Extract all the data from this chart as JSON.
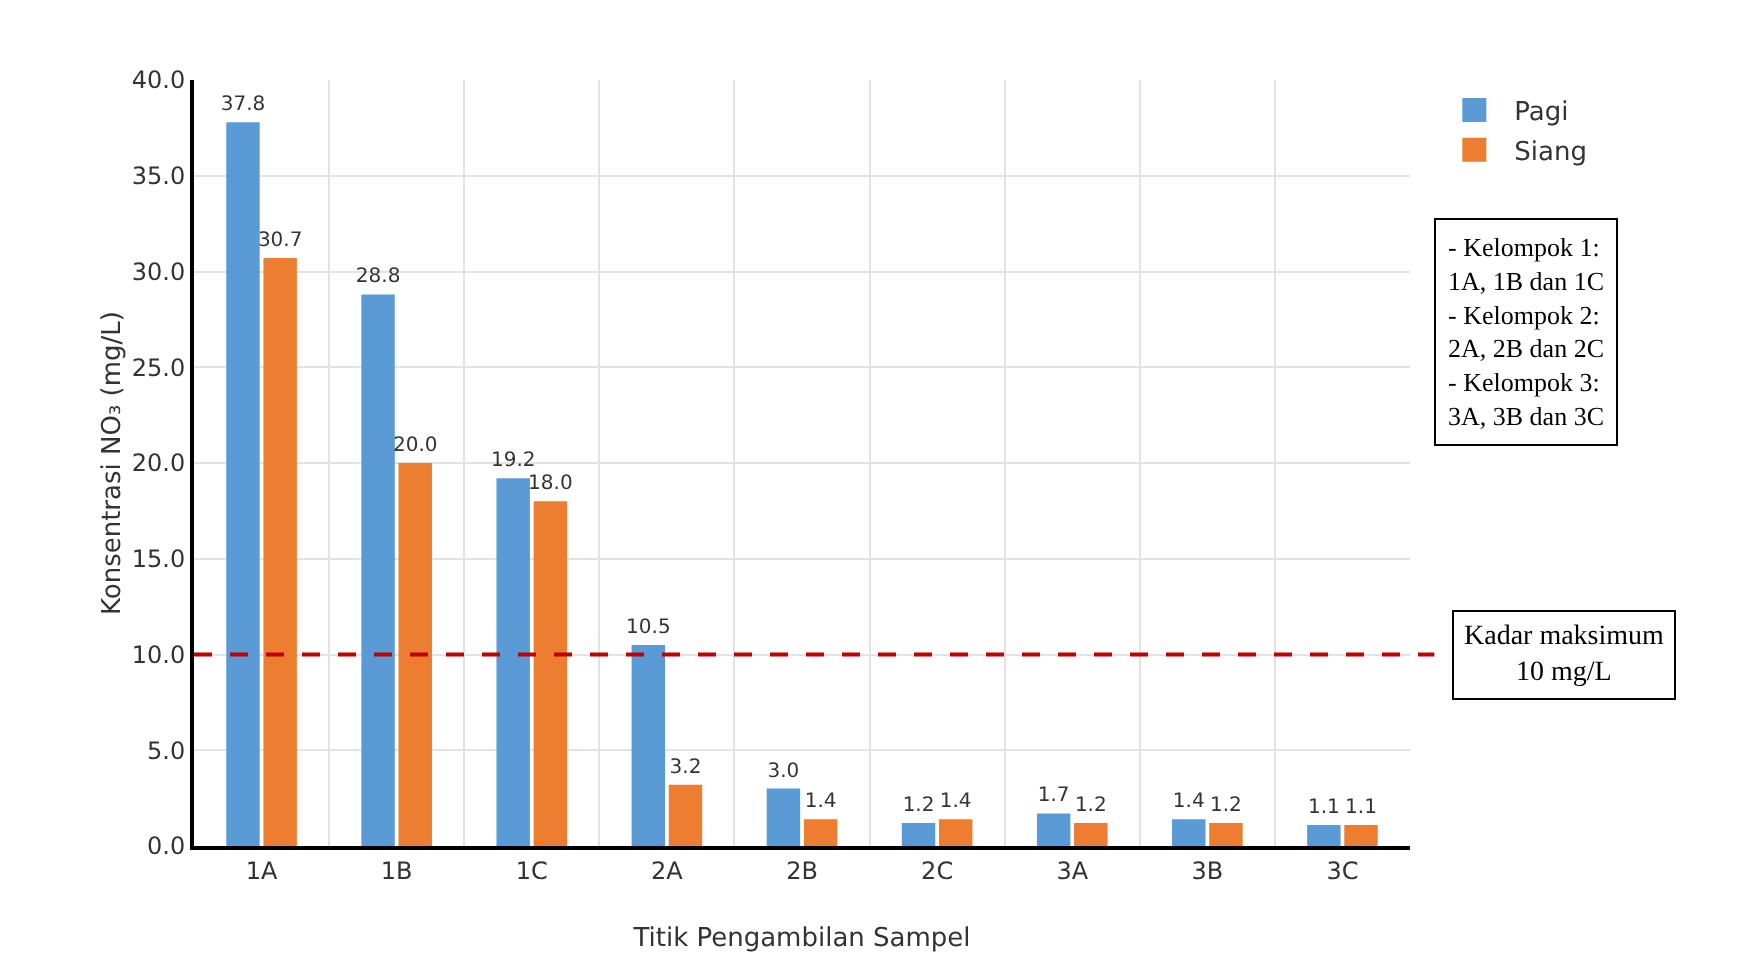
{
  "chart_data": {
    "type": "bar",
    "xlabel": "Titik Pengambilan Sampel",
    "ylabel": "Konsentrasi NO₃ (mg/L)",
    "categories": [
      "1A",
      "1B",
      "1C",
      "2A",
      "2B",
      "2C",
      "3A",
      "3B",
      "3C"
    ],
    "series": [
      {
        "name": "Pagi",
        "color": "#5b9bd5",
        "values": [
          37.8,
          28.8,
          19.2,
          10.5,
          3.0,
          1.2,
          1.7,
          1.4,
          1.1
        ],
        "value_labels": [
          "37.8",
          "28.8",
          "19.2",
          "10.5",
          "3.0",
          "1.2",
          "1.7",
          "1.4",
          "1.1"
        ]
      },
      {
        "name": "Siang",
        "color": "#ed7d31",
        "values": [
          30.7,
          20.0,
          18.0,
          3.2,
          1.4,
          1.4,
          1.2,
          1.2,
          1.1
        ],
        "value_labels": [
          "30.7",
          "20.0",
          "18.0",
          "3.2",
          "1.4",
          "1.4",
          "1.2",
          "1.2",
          "1.1"
        ]
      }
    ],
    "ylim": [
      0,
      40
    ],
    "yticks": [
      {
        "value": 0,
        "label": "0.0"
      },
      {
        "value": 5,
        "label": "5.0"
      },
      {
        "value": 10,
        "label": "10.0"
      },
      {
        "value": 15,
        "label": "15.0"
      },
      {
        "value": 20,
        "label": "20.0"
      },
      {
        "value": 25,
        "label": "25.0"
      },
      {
        "value": 30,
        "label": "30.0"
      },
      {
        "value": 35,
        "label": "35.0"
      },
      {
        "value": 40,
        "label": "40.0"
      }
    ],
    "grid": true,
    "legend": "top right",
    "ref_lines": [
      {
        "axis": "y",
        "value": 10,
        "label": "Kadar maksimum\n10 mg/L",
        "color": "#c00000",
        "line_style": "dashed"
      }
    ],
    "annotations": [
      "- Kelompok 1:\n1A, 1B dan 1C\n- Kelompok 2:\n2A, 2B dan 2C\n- Kelompok 3:\n3A, 3B dan 3C"
    ]
  }
}
